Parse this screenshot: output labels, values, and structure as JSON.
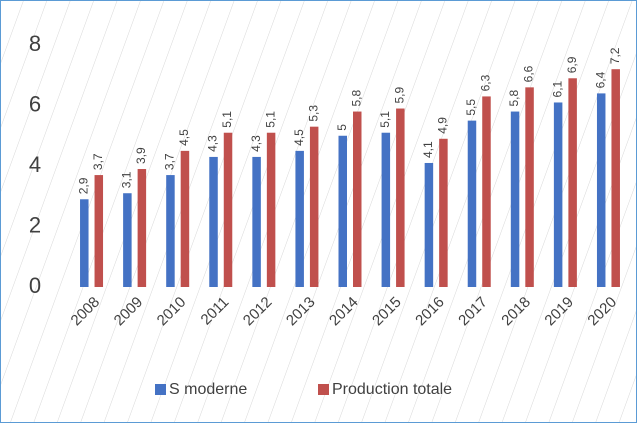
{
  "chart_data": {
    "type": "bar",
    "categories": [
      "2008",
      "2009",
      "2010",
      "2011",
      "2012",
      "2013",
      "2014",
      "2015",
      "2016",
      "2017",
      "2018",
      "2019",
      "2020"
    ],
    "series": [
      {
        "name": "S moderne",
        "color": "#4472c4",
        "values": [
          2.9,
          3.1,
          3.7,
          4.3,
          4.3,
          4.5,
          5,
          5.1,
          4.1,
          5.5,
          5.8,
          6.1,
          6.4
        ],
        "value_labels": [
          "2,9",
          "3,1",
          "3,7",
          "4,3",
          "4,3",
          "4,5",
          "5",
          "5,1",
          "4,1",
          "5,5",
          "5,8",
          "6,1",
          "6,4"
        ]
      },
      {
        "name": "Production totale",
        "color": "#c0504d",
        "values": [
          3.7,
          3.9,
          4.5,
          5.1,
          5.1,
          5.3,
          5.8,
          5.9,
          4.9,
          6.3,
          6.6,
          6.9,
          7.2
        ],
        "value_labels": [
          "3,7",
          "3,9",
          "4,5",
          "5,1",
          "5,1",
          "5,3",
          "5,8",
          "5,9",
          "4,9",
          "6,3",
          "6,6",
          "6,9",
          "7,2"
        ]
      }
    ],
    "ylim": [
      0,
      8
    ],
    "yticks": [
      0,
      2,
      4,
      6,
      8
    ],
    "grid": false,
    "legend": "bottom"
  }
}
